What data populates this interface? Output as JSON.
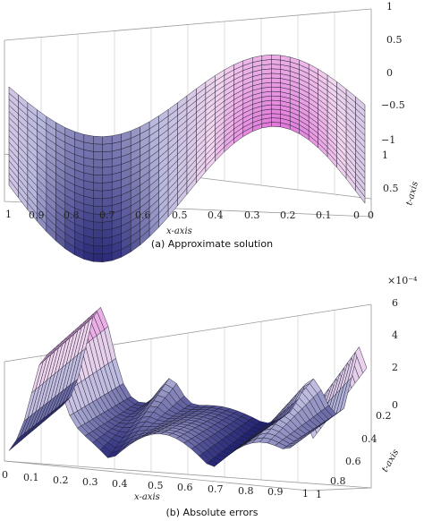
{
  "chart_data": [
    {
      "type": "surface",
      "caption": "(a) Approximate solution",
      "xlabel": "x-axis",
      "tlabel": "t-axis",
      "x_ticks": [
        "1",
        "0.9",
        "0.8",
        "0.7",
        "0.6",
        "0.5",
        "0.4",
        "0.3",
        "0.2",
        "0.1",
        "0"
      ],
      "t_ticks": [
        "0",
        "0.5",
        "1"
      ],
      "z_ticks": [
        "1",
        "0.5",
        "0",
        "−0.5",
        "−1"
      ],
      "xlim": [
        0,
        1
      ],
      "tlim": [
        0,
        1
      ],
      "zlim": [
        -1,
        1
      ],
      "colormap": [
        "#1a1a6e",
        "#b9b9dd",
        "#f2d6ee",
        "#e070d8"
      ],
      "grid": true
    },
    {
      "type": "surface",
      "caption": "(b) Absolute errors",
      "xlabel": "x-axis",
      "tlabel": "t-axis",
      "x_ticks": [
        "0",
        "0.1",
        "0.2",
        "0.3",
        "0.4",
        "0.5",
        "0.6",
        "0.7",
        "0.8",
        "0.9",
        "1"
      ],
      "t_ticks": [
        "0.2",
        "0.4",
        "0.6",
        "0.8",
        "1"
      ],
      "z_ticks": [
        "6",
        "4",
        "2",
        "0"
      ],
      "z_exponent": "×10⁻⁴",
      "xlim": [
        0,
        1
      ],
      "tlim": [
        0,
        1
      ],
      "zlim": [
        0,
        6
      ],
      "colormap": [
        "#1a1a6e",
        "#b9b9dd",
        "#f2d6ee",
        "#e070d8"
      ],
      "grid": true
    }
  ]
}
